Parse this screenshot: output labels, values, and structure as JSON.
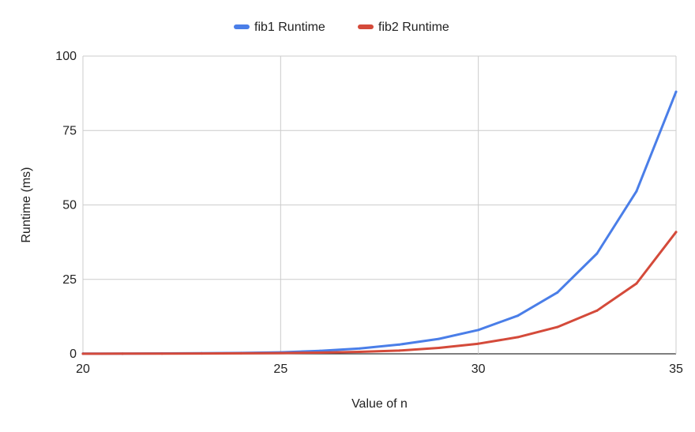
{
  "chart_data": {
    "type": "line",
    "title": "",
    "xlabel": "Value of n",
    "ylabel": "Runtime (ms)",
    "xlim": [
      20,
      35
    ],
    "ylim": [
      0,
      100
    ],
    "x_ticks": [
      20,
      25,
      30,
      35
    ],
    "y_ticks": [
      0,
      25,
      50,
      75,
      100
    ],
    "x_tick_labels": [
      "20",
      "25",
      "30",
      "35"
    ],
    "y_tick_labels": [
      "0",
      "25",
      "50",
      "75",
      "100"
    ],
    "grid": true,
    "legend_position": "top-center",
    "x": [
      20,
      21,
      22,
      23,
      24,
      25,
      26,
      27,
      28,
      29,
      30,
      31,
      32,
      33,
      34,
      35
    ],
    "series": [
      {
        "name": "fib1 Runtime",
        "color": "#4a7ee8",
        "values": [
          0.05,
          0.08,
          0.13,
          0.2,
          0.3,
          0.5,
          1.0,
          1.8,
          3.1,
          5.0,
          8.0,
          12.8,
          20.6,
          33.7,
          54.6,
          88.0
        ]
      },
      {
        "name": "fib2 Runtime",
        "color": "#d44a3a",
        "values": [
          0.02,
          0.04,
          0.06,
          0.1,
          0.15,
          0.25,
          0.4,
          0.65,
          1.1,
          2.0,
          3.4,
          5.6,
          9.0,
          14.5,
          23.6,
          40.9
        ]
      }
    ]
  }
}
